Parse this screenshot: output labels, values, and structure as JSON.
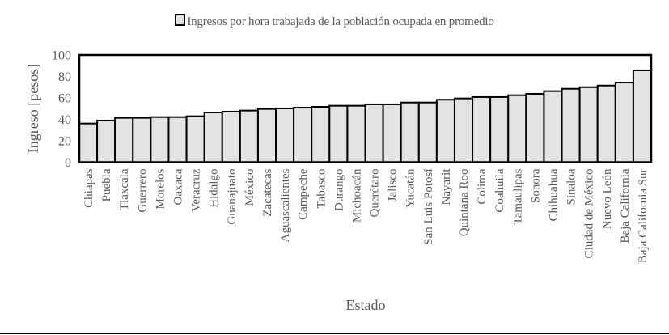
{
  "chart_data": {
    "type": "bar",
    "title": "",
    "legend": {
      "position": "top",
      "entries": [
        "Ingresos por hora trabajada de la población ocupada en promedio"
      ]
    },
    "xlabel": "Estado",
    "ylabel": "Ingreso [pesos]",
    "ylim": [
      0,
      100
    ],
    "yticks": [
      "0",
      "20",
      "40",
      "60",
      "80",
      "100"
    ],
    "grid": false,
    "bar_fill": "#e3e3e3",
    "bar_edge": "#000000",
    "categories": [
      "Chiapas",
      "Puebla",
      "Tlaxcala",
      "Guerrero",
      "Morelos",
      "Oaxaca",
      "Veracruz",
      "Hidalgo",
      "Guanajuato",
      "México",
      "Zacatecas",
      "Aguascalientes",
      "Campeche",
      "Tabasco",
      "Durango",
      "Michoacán",
      "Querétaro",
      "Jalisco",
      "Yucatán",
      "San Luis Potosí",
      "Nayarit",
      "Quintana Roo",
      "Colima",
      "Coahuila",
      "Tamaulipas",
      "Sonora",
      "Chihuahua",
      "Sinaloa",
      "Ciudad de México",
      "Nuevo León",
      "Baja California",
      "Baja California Sur"
    ],
    "series": [
      {
        "name": "Ingresos por hora trabajada de la población ocupada en promedio",
        "values": [
          36.1,
          38.9,
          41.4,
          41.4,
          42.1,
          42.1,
          42.9,
          46.4,
          47.2,
          48.2,
          49.7,
          50.2,
          50.9,
          51.7,
          52.7,
          52.7,
          54.0,
          54.0,
          55.7,
          55.7,
          58.3,
          59.5,
          60.8,
          60.8,
          62.5,
          63.8,
          66.3,
          68.5,
          70.0,
          71.5,
          74.3,
          85.7
        ]
      }
    ]
  }
}
